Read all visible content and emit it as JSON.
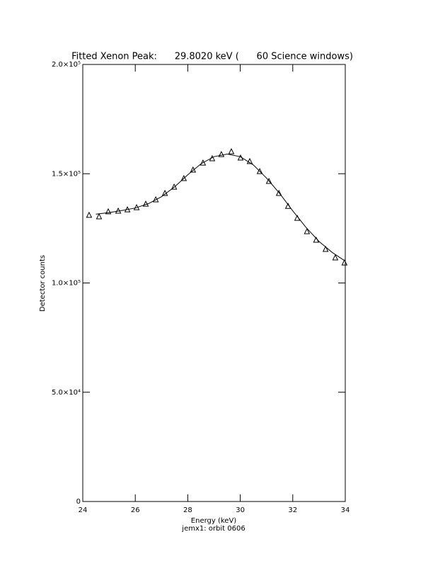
{
  "chart_data": {
    "type": "line",
    "title": "Fitted Xenon Peak:      29.8020 keV (      60 Science windows)",
    "x_label": "Energy (keV)",
    "subtitle": "jemx1: orbit 0606",
    "y_label": "Detector counts",
    "xlim": [
      24,
      34
    ],
    "xticks": [
      24,
      26,
      28,
      30,
      32,
      34
    ],
    "ylim": [
      0,
      200000
    ],
    "yticks": [
      0,
      {
        "value": 50000,
        "label": "5.0×10⁴"
      },
      {
        "value": 100000,
        "label": "1.0×10⁵"
      },
      {
        "value": 150000,
        "label": "1.5×10⁵"
      },
      {
        "value": 200000,
        "label": "2.0×10⁵"
      }
    ],
    "color": "#000000",
    "series": [
      {
        "style": "markers",
        "x": [
          24.24,
          24.62,
          24.97,
          25.35,
          25.7,
          26.05,
          26.4,
          26.78,
          27.13,
          27.48,
          27.85,
          28.2,
          28.58,
          28.93,
          29.28,
          29.66,
          30.01,
          30.36,
          30.74,
          31.09,
          31.47,
          31.82,
          32.17,
          32.54,
          32.89,
          33.25,
          33.62,
          33.97
        ],
        "values": [
          131000,
          130300,
          132600,
          132900,
          133500,
          134500,
          136100,
          138100,
          141000,
          143900,
          147800,
          151700,
          154900,
          156900,
          158800,
          160100,
          157200,
          155600,
          151000,
          146500,
          141000,
          135100,
          129600,
          123500,
          119600,
          115400,
          111500,
          109200
        ]
      },
      {
        "style": "line",
        "x": [
          24.5,
          25,
          25.5,
          26,
          26.5,
          27,
          27.5,
          28,
          28.5,
          29,
          29.5,
          30,
          30.5,
          31,
          31.5,
          32,
          32.5,
          33,
          33.5,
          34
        ],
        "values": [
          131500,
          132200,
          133200,
          134300,
          136300,
          139500,
          144000,
          149500,
          154500,
          157800,
          159000,
          157800,
          154000,
          148000,
          141000,
          133000,
          125500,
          119000,
          114000,
          110000
        ]
      }
    ]
  }
}
